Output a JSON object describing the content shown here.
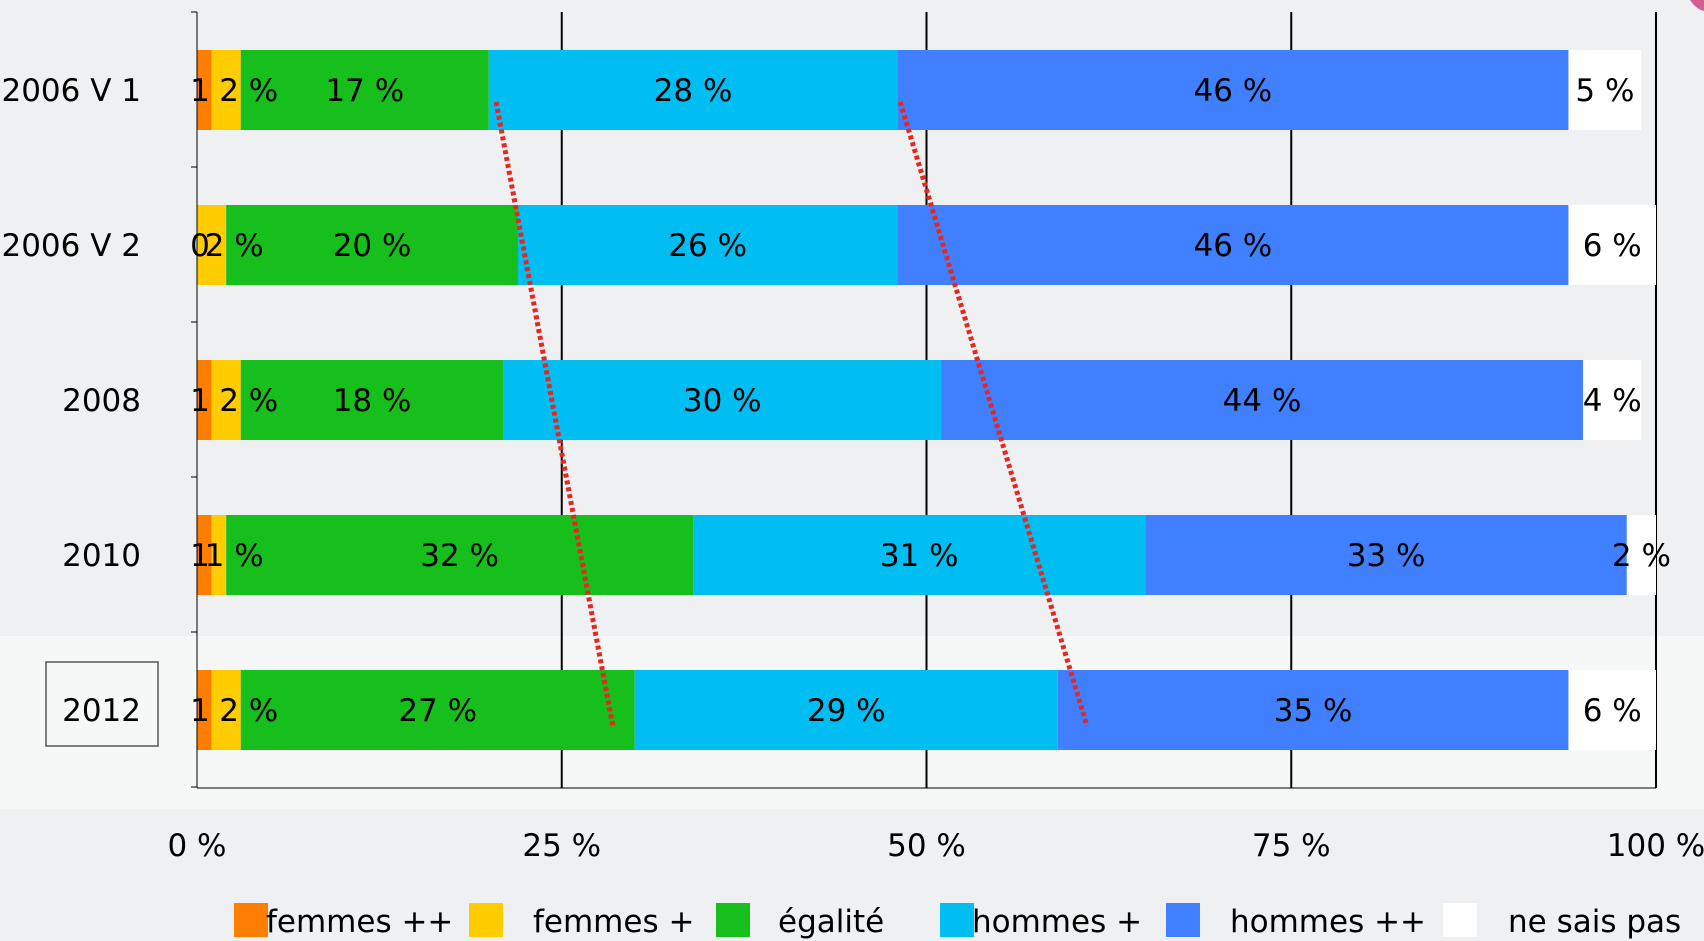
{
  "chart_data": {
    "type": "bar",
    "orientation": "horizontal",
    "stacked": true,
    "xlim": [
      0,
      100
    ],
    "x_ticks": [
      "0 %",
      "25 %",
      "50 %",
      "75 %",
      "100 %"
    ],
    "categories": [
      "2006 V 1",
      "2006 V 2",
      "2008",
      "2010",
      "2012"
    ],
    "highlighted_category": "2012",
    "series": [
      {
        "name": "femmes ++",
        "color": "#ff7d00",
        "values": [
          1,
          0,
          1,
          1,
          1
        ],
        "labels": [
          "1",
          "0",
          "1",
          "1",
          "1"
        ]
      },
      {
        "name": "femmes +",
        "color": "#ffcc00",
        "values": [
          2,
          2,
          2,
          1,
          2
        ],
        "labels": [
          "2 %",
          "2 %",
          "2 %",
          "1 %",
          "2 %"
        ]
      },
      {
        "name": "égalité",
        "color": "#16bf1b",
        "values": [
          17,
          20,
          18,
          32,
          27
        ],
        "labels": [
          "17 %",
          "20 %",
          "18 %",
          "32 %",
          "27 %"
        ]
      },
      {
        "name": "hommes +",
        "color": "#00bdf2",
        "values": [
          28,
          26,
          30,
          31,
          29
        ],
        "labels": [
          "28 %",
          "26 %",
          "30 %",
          "31 %",
          "29 %"
        ]
      },
      {
        "name": "hommes ++",
        "color": "#4080ff",
        "values": [
          46,
          46,
          44,
          33,
          35
        ],
        "labels": [
          "46 %",
          "46 %",
          "44 %",
          "33 %",
          "35 %"
        ]
      },
      {
        "name": "ne sais pas",
        "color": "#ffffff",
        "values": [
          5,
          6,
          4,
          2,
          6
        ],
        "labels": [
          "5 %",
          "6 %",
          "4 %",
          "2 %",
          "6 %"
        ]
      }
    ],
    "trend_lines": [
      {
        "color": "#e8251e",
        "style": "dotted",
        "from": {
          "category": "2006 V 1",
          "x": 20.5
        },
        "to": {
          "category": "2012",
          "x": 28.5
        }
      },
      {
        "color": "#e8251e",
        "style": "dotted",
        "from": {
          "category": "2006 V 1",
          "x": 48.2
        },
        "to": {
          "category": "2012",
          "x": 61
        }
      }
    ],
    "grid": "vertical",
    "legend": "bottom"
  }
}
